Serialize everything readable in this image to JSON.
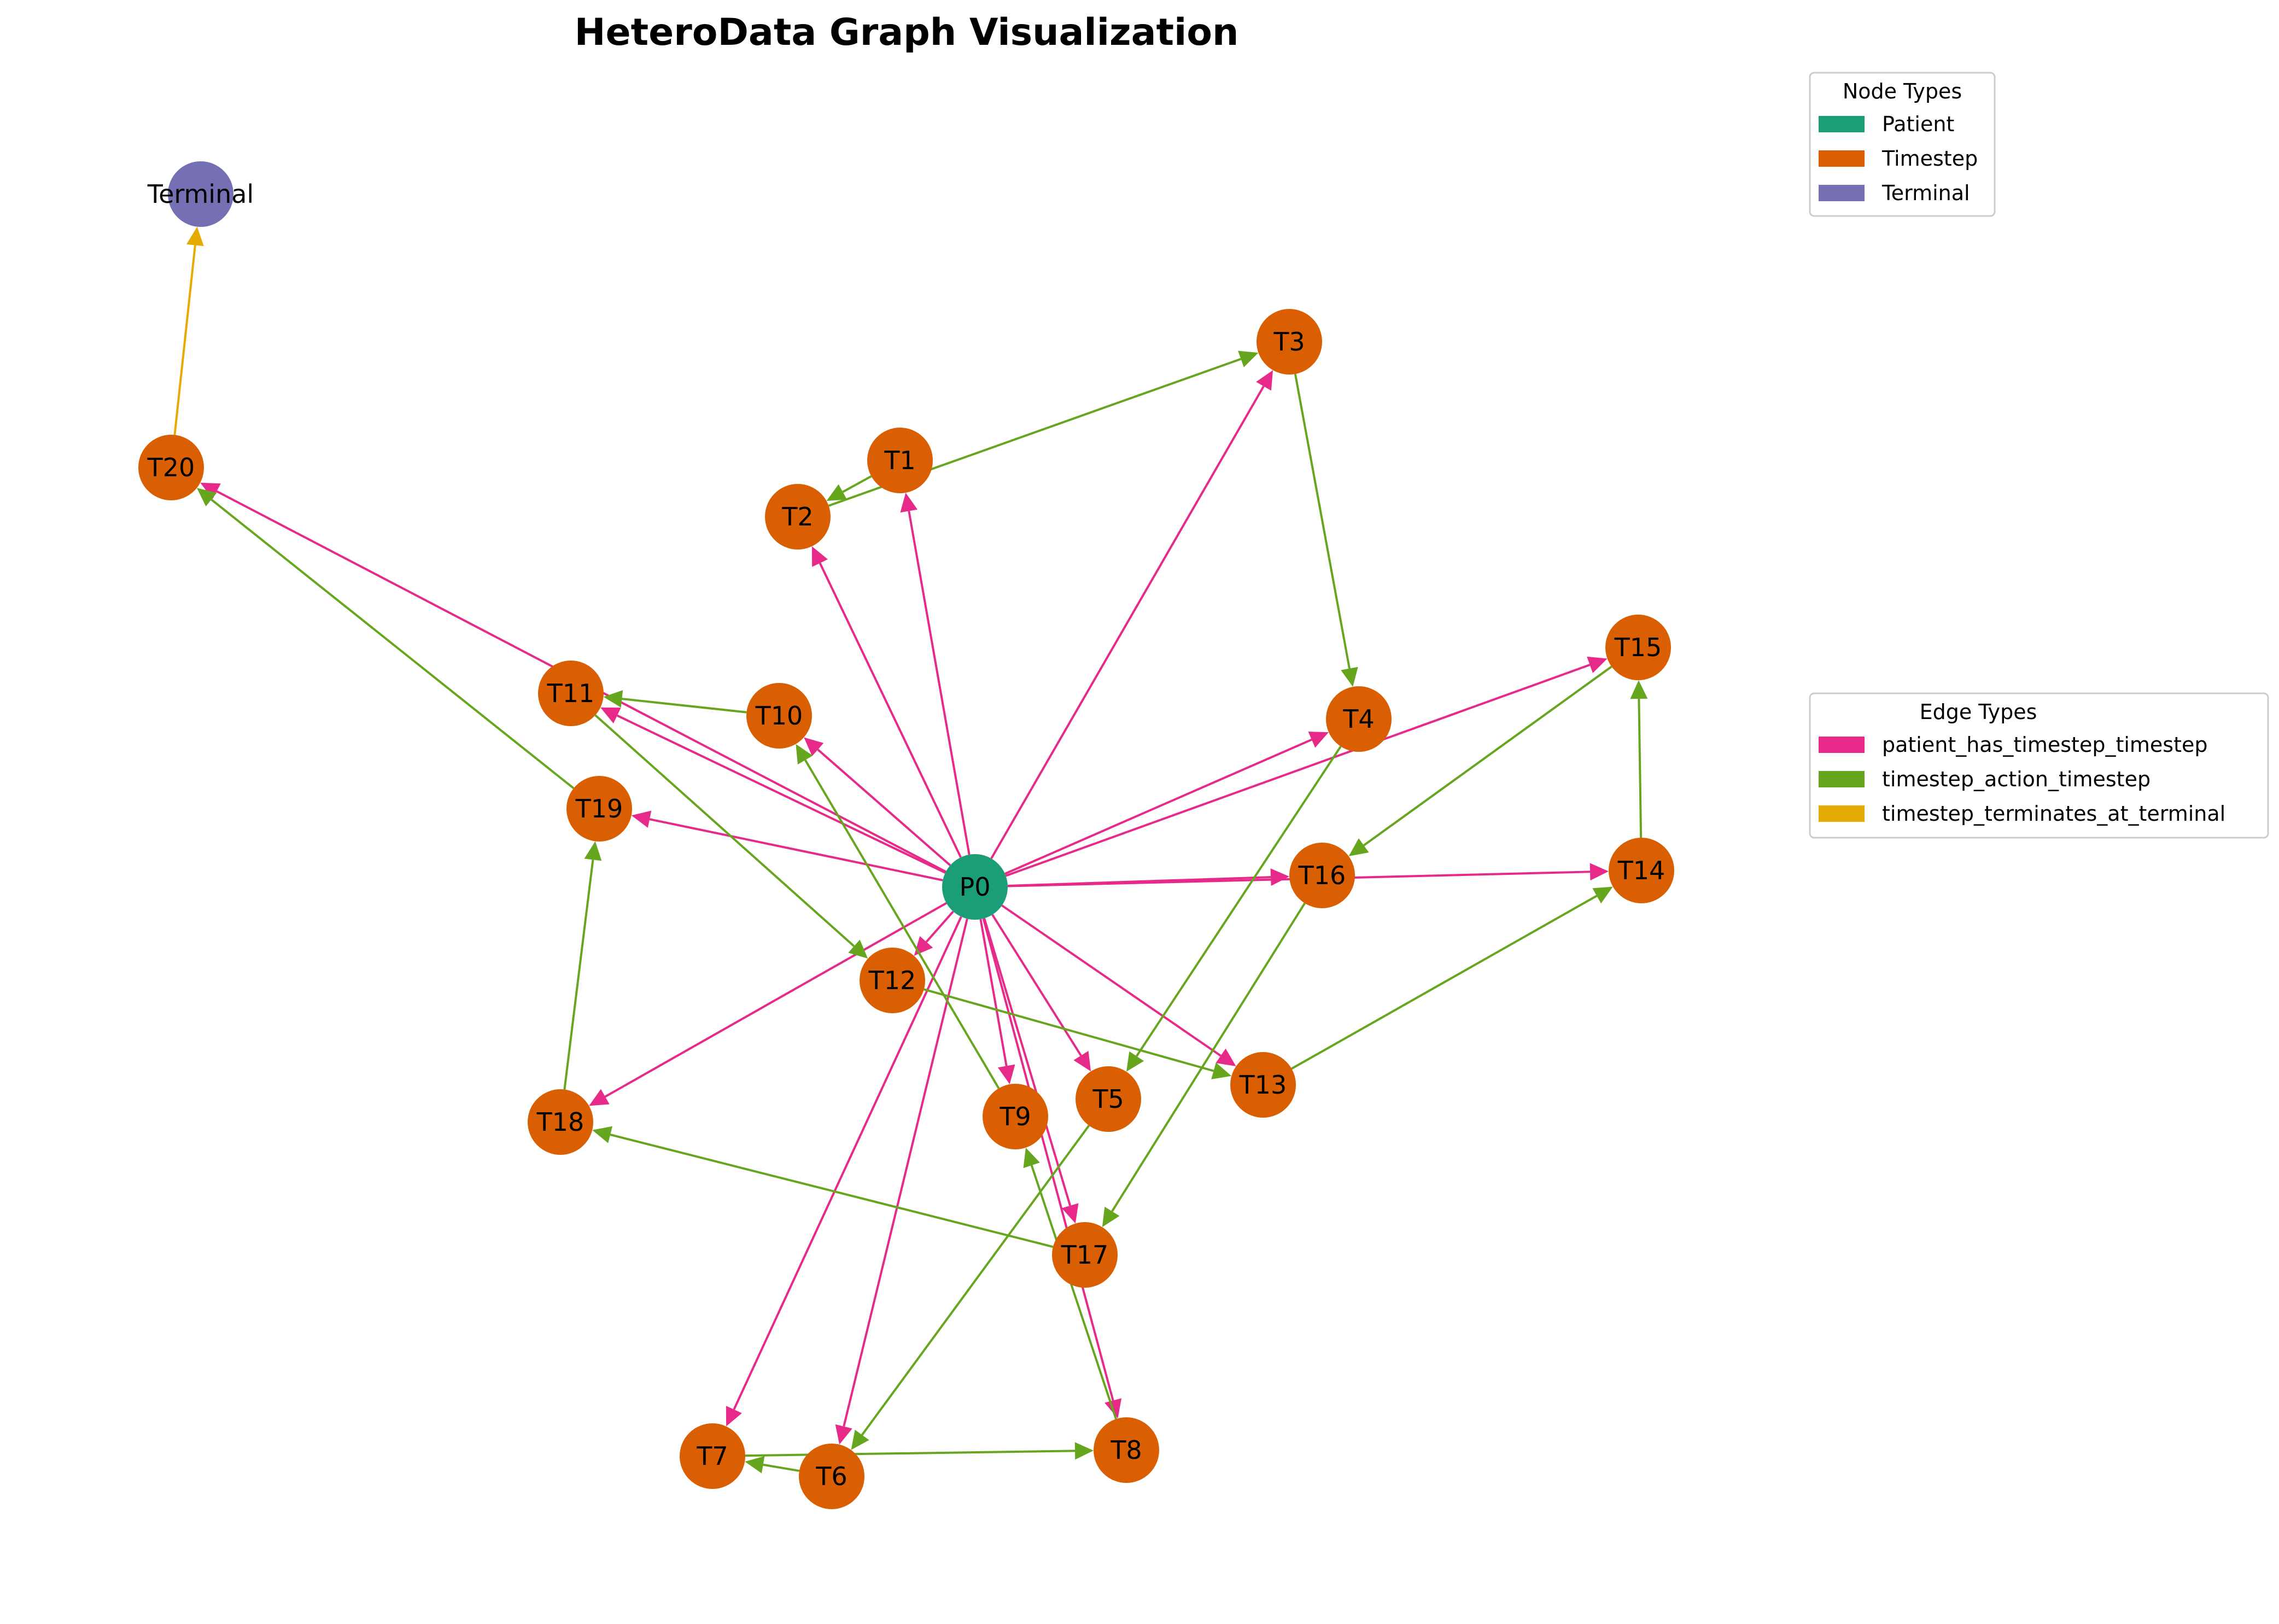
{
  "title": "HeteroData Graph Visualization",
  "node_types": {
    "title": "Node Types",
    "items": [
      {
        "key": "patient",
        "label": "Patient",
        "color": "#1b9e77"
      },
      {
        "key": "timestep",
        "label": "Timestep",
        "color": "#d95f02"
      },
      {
        "key": "terminal",
        "label": "Terminal",
        "color": "#7570b3"
      }
    ]
  },
  "edge_types": {
    "title": "Edge Types",
    "items": [
      {
        "key": "has",
        "label": "patient_has_timestep_timestep",
        "color": "#e7298a"
      },
      {
        "key": "action",
        "label": "timestep_action_timestep",
        "color": "#66a61e"
      },
      {
        "key": "term",
        "label": "timestep_terminates_at_terminal",
        "color": "#e6ab02"
      }
    ]
  },
  "nodes": [
    {
      "id": "P0",
      "type": "patient",
      "label": "P0"
    },
    {
      "id": "T1",
      "type": "timestep",
      "label": "T1"
    },
    {
      "id": "T2",
      "type": "timestep",
      "label": "T2"
    },
    {
      "id": "T3",
      "type": "timestep",
      "label": "T3"
    },
    {
      "id": "T4",
      "type": "timestep",
      "label": "T4"
    },
    {
      "id": "T5",
      "type": "timestep",
      "label": "T5"
    },
    {
      "id": "T6",
      "type": "timestep",
      "label": "T6"
    },
    {
      "id": "T7",
      "type": "timestep",
      "label": "T7"
    },
    {
      "id": "T8",
      "type": "timestep",
      "label": "T8"
    },
    {
      "id": "T9",
      "type": "timestep",
      "label": "T9"
    },
    {
      "id": "T10",
      "type": "timestep",
      "label": "T10"
    },
    {
      "id": "T11",
      "type": "timestep",
      "label": "T11"
    },
    {
      "id": "T12",
      "type": "timestep",
      "label": "T12"
    },
    {
      "id": "T13",
      "type": "timestep",
      "label": "T13"
    },
    {
      "id": "T14",
      "type": "timestep",
      "label": "T14"
    },
    {
      "id": "T15",
      "type": "timestep",
      "label": "T15"
    },
    {
      "id": "T16",
      "type": "timestep",
      "label": "T16"
    },
    {
      "id": "T17",
      "type": "timestep",
      "label": "T17"
    },
    {
      "id": "T18",
      "type": "timestep",
      "label": "T18"
    },
    {
      "id": "T19",
      "type": "timestep",
      "label": "T19"
    },
    {
      "id": "T20",
      "type": "timestep",
      "label": "T20"
    },
    {
      "id": "Terminal",
      "type": "terminal",
      "label": "Terminal"
    }
  ],
  "edges": [
    {
      "from": "P0",
      "to": "T1",
      "type": "has"
    },
    {
      "from": "P0",
      "to": "T2",
      "type": "has"
    },
    {
      "from": "P0",
      "to": "T3",
      "type": "has"
    },
    {
      "from": "P0",
      "to": "T4",
      "type": "has"
    },
    {
      "from": "P0",
      "to": "T5",
      "type": "has"
    },
    {
      "from": "P0",
      "to": "T6",
      "type": "has"
    },
    {
      "from": "P0",
      "to": "T7",
      "type": "has"
    },
    {
      "from": "P0",
      "to": "T8",
      "type": "has"
    },
    {
      "from": "P0",
      "to": "T9",
      "type": "has"
    },
    {
      "from": "P0",
      "to": "T10",
      "type": "has"
    },
    {
      "from": "P0",
      "to": "T11",
      "type": "has"
    },
    {
      "from": "P0",
      "to": "T12",
      "type": "has"
    },
    {
      "from": "P0",
      "to": "T13",
      "type": "has"
    },
    {
      "from": "P0",
      "to": "T14",
      "type": "has"
    },
    {
      "from": "P0",
      "to": "T15",
      "type": "has"
    },
    {
      "from": "P0",
      "to": "T16",
      "type": "has"
    },
    {
      "from": "P0",
      "to": "T17",
      "type": "has"
    },
    {
      "from": "P0",
      "to": "T18",
      "type": "has"
    },
    {
      "from": "P0",
      "to": "T19",
      "type": "has"
    },
    {
      "from": "P0",
      "to": "T20",
      "type": "has"
    },
    {
      "from": "T1",
      "to": "T2",
      "type": "action"
    },
    {
      "from": "T2",
      "to": "T3",
      "type": "action"
    },
    {
      "from": "T3",
      "to": "T4",
      "type": "action"
    },
    {
      "from": "T4",
      "to": "T5",
      "type": "action"
    },
    {
      "from": "T5",
      "to": "T6",
      "type": "action"
    },
    {
      "from": "T6",
      "to": "T7",
      "type": "action"
    },
    {
      "from": "T7",
      "to": "T8",
      "type": "action"
    },
    {
      "from": "T8",
      "to": "T9",
      "type": "action"
    },
    {
      "from": "T9",
      "to": "T10",
      "type": "action"
    },
    {
      "from": "T10",
      "to": "T11",
      "type": "action"
    },
    {
      "from": "T11",
      "to": "T12",
      "type": "action"
    },
    {
      "from": "T12",
      "to": "T13",
      "type": "action"
    },
    {
      "from": "T13",
      "to": "T14",
      "type": "action"
    },
    {
      "from": "T14",
      "to": "T15",
      "type": "action"
    },
    {
      "from": "T15",
      "to": "T16",
      "type": "action"
    },
    {
      "from": "T16",
      "to": "T17",
      "type": "action"
    },
    {
      "from": "T17",
      "to": "T18",
      "type": "action"
    },
    {
      "from": "T18",
      "to": "T19",
      "type": "action"
    },
    {
      "from": "T19",
      "to": "T20",
      "type": "action"
    },
    {
      "from": "T20",
      "to": "Terminal",
      "type": "term"
    }
  ]
}
